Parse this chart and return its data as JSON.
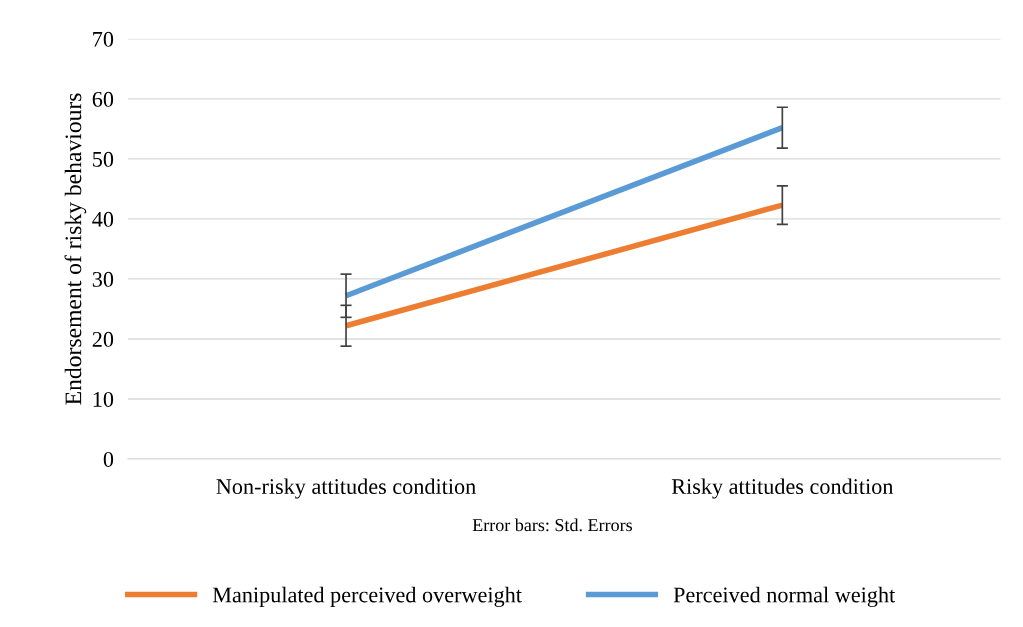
{
  "chart_data": {
    "type": "line",
    "ylabel": "Endorsement of risky behaviours",
    "categories": [
      "Non-risky attitudes condition",
      "Risky attitudes condition"
    ],
    "series": [
      {
        "name": "Manipulated perceived overweight",
        "color": "#ed7d31",
        "values": [
          22.2,
          42.3
        ],
        "errors": [
          3.4,
          3.2
        ]
      },
      {
        "name": "Perceived normal weight",
        "color": "#5b9bd5",
        "values": [
          27.2,
          55.2
        ],
        "errors": [
          3.6,
          3.4
        ]
      }
    ],
    "ylim": [
      0,
      70
    ],
    "yticks": [
      0,
      10,
      20,
      30,
      40,
      50,
      60,
      70
    ],
    "grid": "y",
    "legend": "bottom",
    "marker": "none",
    "line_style": "solid",
    "annotations": [
      "Error bars: Std. Errors"
    ]
  }
}
